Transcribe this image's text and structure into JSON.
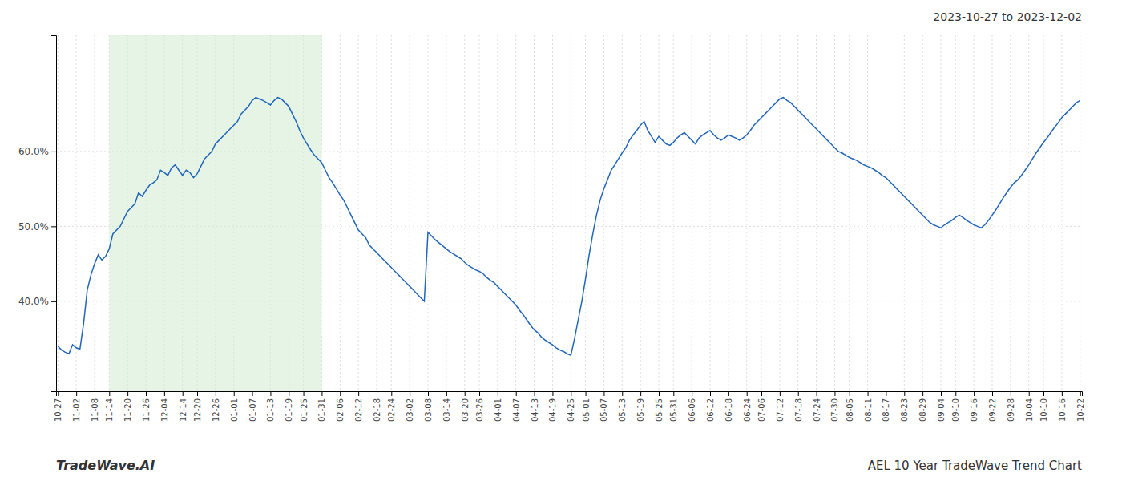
{
  "chart_data": {
    "type": "line",
    "title": "AEL 10 Year TradeWave Trend Chart",
    "subtitle": "2023-10-27 to 2023-12-02",
    "annotations": [
      "TradeWave.AI"
    ],
    "color": "#2266bb",
    "grid": true,
    "ylim": [
      0.28,
      0.755
    ],
    "yticks": [
      {
        "value": 0.4,
        "label": "40.0%"
      },
      {
        "value": 0.5,
        "label": "50.0%"
      },
      {
        "value": 0.6,
        "label": "60.0%"
      }
    ],
    "shaded_span": {
      "from": "11-14",
      "to": "01-31",
      "color": "#d4ecd4"
    },
    "categories": [
      "10-27",
      null,
      null,
      null,
      null,
      "11-02",
      null,
      null,
      null,
      null,
      "11-08",
      null,
      null,
      null,
      "11-14",
      null,
      null,
      null,
      null,
      "11-20",
      null,
      null,
      null,
      null,
      "11-26",
      null,
      null,
      null,
      null,
      "12-04",
      null,
      null,
      null,
      null,
      "12-14",
      null,
      null,
      null,
      "12-20",
      null,
      null,
      null,
      null,
      "12-26",
      null,
      null,
      null,
      null,
      "01-01",
      null,
      null,
      null,
      null,
      "01-07",
      null,
      null,
      null,
      null,
      "01-13",
      null,
      null,
      null,
      null,
      "01-19",
      null,
      null,
      null,
      "01-25",
      null,
      null,
      null,
      null,
      "01-31",
      null,
      null,
      null,
      null,
      "02-06",
      null,
      null,
      null,
      null,
      "02-12",
      null,
      null,
      null,
      null,
      "02-18",
      null,
      null,
      null,
      "02-24",
      null,
      null,
      null,
      null,
      "03-02",
      null,
      null,
      null,
      null,
      "03-08",
      null,
      null,
      null,
      null,
      "03-14",
      null,
      null,
      null,
      null,
      "03-20",
      null,
      null,
      null,
      "03-26",
      null,
      null,
      null,
      null,
      "04-01",
      null,
      null,
      null,
      null,
      "04-07",
      null,
      null,
      null,
      null,
      "04-13",
      null,
      null,
      null,
      null,
      "04-19",
      null,
      null,
      null,
      null,
      "04-25",
      null,
      null,
      null,
      "05-01",
      null,
      null,
      null,
      null,
      "05-07",
      null,
      null,
      null,
      null,
      "05-13",
      null,
      null,
      null,
      null,
      "05-19",
      null,
      null,
      null,
      null,
      "05-25",
      null,
      null,
      null,
      "05-31",
      null,
      null,
      null,
      null,
      "06-06",
      null,
      null,
      null,
      null,
      "06-12",
      null,
      null,
      null,
      null,
      "06-18",
      null,
      null,
      null,
      null,
      "06-24",
      null,
      null,
      null,
      "07-06",
      null,
      null,
      null,
      null,
      "07-12",
      null,
      null,
      null,
      null,
      "07-18",
      null,
      null,
      null,
      null,
      "07-24",
      null,
      null,
      null,
      null,
      "07-30",
      null,
      null,
      null,
      "08-05",
      null,
      null,
      null,
      null,
      "08-11",
      null,
      null,
      null,
      null,
      "08-17",
      null,
      null,
      null,
      null,
      "08-23",
      null,
      null,
      null,
      null,
      "08-29",
      null,
      null,
      null,
      null,
      "09-04",
      null,
      null,
      null,
      "09-10",
      null,
      null,
      null,
      null,
      "09-16",
      null,
      null,
      null,
      null,
      "09-22",
      null,
      null,
      null,
      null,
      "09-28",
      null,
      null,
      null,
      null,
      "10-04",
      null,
      null,
      null,
      "10-10",
      null,
      null,
      null,
      null,
      "10-16",
      null,
      null,
      null,
      null,
      "10-22"
    ],
    "values": [
      0.34,
      0.335,
      0.332,
      0.33,
      0.342,
      0.338,
      0.336,
      0.37,
      0.415,
      0.435,
      0.45,
      0.462,
      0.455,
      0.46,
      0.47,
      0.49,
      0.495,
      0.5,
      0.51,
      0.52,
      0.525,
      0.53,
      0.545,
      0.54,
      0.548,
      0.555,
      0.558,
      0.562,
      0.575,
      0.572,
      0.568,
      0.578,
      0.582,
      0.575,
      0.568,
      0.575,
      0.572,
      0.565,
      0.57,
      0.58,
      0.59,
      0.595,
      0.6,
      0.61,
      0.615,
      0.62,
      0.625,
      0.63,
      0.635,
      0.64,
      0.65,
      0.655,
      0.66,
      0.668,
      0.672,
      0.67,
      0.668,
      0.665,
      0.662,
      0.668,
      0.672,
      0.67,
      0.665,
      0.66,
      0.65,
      0.64,
      0.628,
      0.618,
      0.61,
      0.602,
      0.595,
      0.59,
      0.585,
      0.575,
      0.565,
      0.558,
      0.55,
      0.542,
      0.535,
      0.525,
      0.515,
      0.505,
      0.495,
      0.49,
      0.485,
      0.475,
      0.47,
      0.465,
      0.46,
      0.455,
      0.45,
      0.445,
      0.44,
      0.435,
      0.43,
      0.425,
      0.42,
      0.415,
      0.41,
      0.405,
      0.4,
      0.492,
      0.487,
      0.482,
      0.478,
      0.474,
      0.47,
      0.466,
      0.463,
      0.46,
      0.457,
      0.452,
      0.448,
      0.445,
      0.442,
      0.44,
      0.437,
      0.432,
      0.428,
      0.425,
      0.42,
      0.415,
      0.41,
      0.405,
      0.4,
      0.395,
      0.388,
      0.382,
      0.375,
      0.368,
      0.362,
      0.358,
      0.352,
      0.348,
      0.345,
      0.342,
      0.338,
      0.335,
      0.333,
      0.33,
      0.328,
      0.35,
      0.375,
      0.4,
      0.43,
      0.462,
      0.49,
      0.515,
      0.535,
      0.55,
      0.562,
      0.575,
      0.582,
      0.59,
      0.598,
      0.605,
      0.615,
      0.622,
      0.628,
      0.635,
      0.64,
      0.628,
      0.62,
      0.612,
      0.62,
      0.615,
      0.61,
      0.608,
      0.612,
      0.618,
      0.622,
      0.625,
      0.62,
      0.615,
      0.61,
      0.618,
      0.622,
      0.625,
      0.628,
      0.622,
      0.618,
      0.615,
      0.618,
      0.622,
      0.62,
      0.618,
      0.615,
      0.618,
      0.622,
      0.628,
      0.635,
      0.64,
      0.645,
      0.65,
      0.655,
      0.66,
      0.665,
      0.67,
      0.672,
      0.668,
      0.665,
      0.66,
      0.655,
      0.65,
      0.645,
      0.64,
      0.635,
      0.63,
      0.625,
      0.62,
      0.615,
      0.61,
      0.605,
      0.6,
      0.598,
      0.595,
      0.592,
      0.59,
      0.588,
      0.585,
      0.582,
      0.58,
      0.578,
      0.575,
      0.572,
      0.568,
      0.565,
      0.56,
      0.555,
      0.55,
      0.545,
      0.54,
      0.535,
      0.53,
      0.525,
      0.52,
      0.515,
      0.51,
      0.505,
      0.502,
      0.5,
      0.498,
      0.502,
      0.505,
      0.508,
      0.512,
      0.515,
      0.512,
      0.508,
      0.505,
      0.502,
      0.5,
      0.498,
      0.502,
      0.508,
      0.515,
      0.522,
      0.53,
      0.538,
      0.545,
      0.552,
      0.558,
      0.562,
      0.568,
      0.575,
      0.582,
      0.59,
      0.598,
      0.605,
      0.612,
      0.618,
      0.625,
      0.632,
      0.638,
      0.645,
      0.65,
      0.655,
      0.66,
      0.665,
      0.668
    ]
  }
}
